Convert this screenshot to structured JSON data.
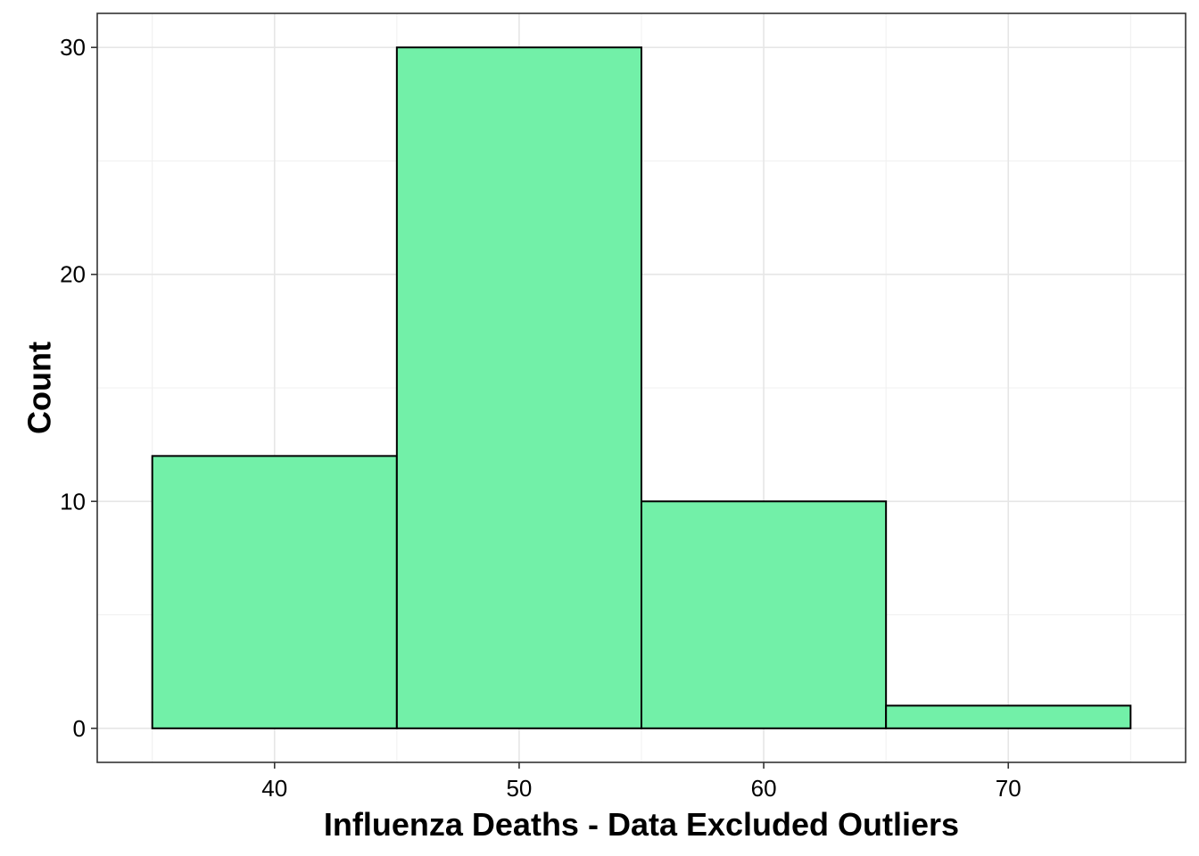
{
  "chart_data": {
    "type": "histogram",
    "title": "",
    "xlabel": "Influenza Deaths - Data Excluded Outliers",
    "ylabel": "Count",
    "bins": [
      {
        "x_start": 35,
        "x_end": 45,
        "count": 12
      },
      {
        "x_start": 45,
        "x_end": 55,
        "count": 30
      },
      {
        "x_start": 55,
        "x_end": 65,
        "count": 10
      },
      {
        "x_start": 65,
        "x_end": 75,
        "count": 1
      }
    ],
    "xlim": [
      32.75,
      77.25
    ],
    "ylim": [
      -1.5,
      31.5
    ],
    "x_ticks": [
      40,
      50,
      60,
      70
    ],
    "x_tick_labels": [
      "40",
      "50",
      "60",
      "70"
    ],
    "y_ticks": [
      0,
      10,
      20,
      30
    ],
    "y_tick_labels": [
      "0",
      "10",
      "20",
      "30"
    ],
    "fill_color": "#72F0A8",
    "outline_color": "#000000",
    "grid": true,
    "legend": "none"
  }
}
